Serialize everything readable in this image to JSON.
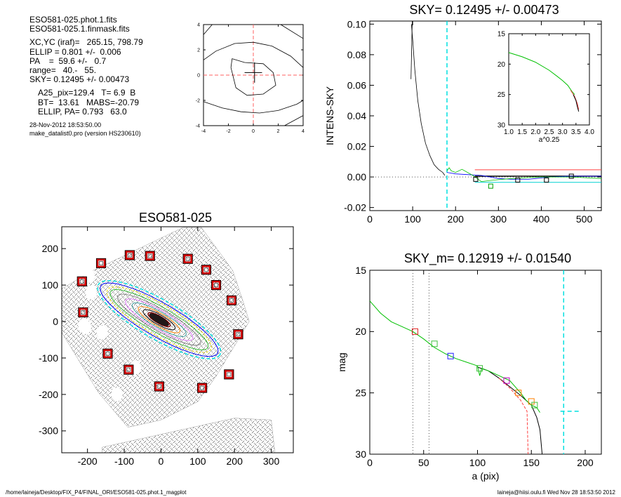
{
  "header": {
    "lines": [
      "ESO581-025.phot.1.fits",
      "ESO581-025.1.finmask.fits",
      "XC,YC (iraf)=   265.15, 798.79",
      "ELLIP = 0.801 +/-  0.006",
      "PA    =  59.6 +/-   0.7",
      "range=   40.-   55.",
      "SKY= 0.12495 +/- 0.00473",
      "A25_pix=129.4   T= 6.9  B",
      "BT=  13.61   MABS=-20.79",
      "ELLIP, PA= 0.793   63.0",
      "28-Nov-2012 18:53:50.00",
      "make_datalist0.pro (version HS230610)"
    ]
  },
  "footer": {
    "left": "/home/laineja/Desktop/FIX_P4/FINAL_ORI/ESO581-025.phot.1_magplot",
    "right": "laineja@hiisi.oulu.fi  Wed Nov 28 18:53:50 2012"
  },
  "colors": {
    "sky_cyan": "#00e0e0",
    "marker_red": "#d00000",
    "green": "#00c000",
    "blue": "#0000ff",
    "orange": "#ff8000",
    "magenta": "#c000c0",
    "dashed_red": "#ff6060"
  },
  "chart_data": [
    {
      "id": "contour_panel",
      "type": "contour",
      "title": "",
      "xlim": [
        -4,
        4
      ],
      "ylim": [
        -4,
        4
      ],
      "xticks": [
        "-4",
        "-2",
        "0",
        "2",
        "4"
      ],
      "yticks": [
        "4",
        "2",
        "0",
        "-2",
        "-4"
      ],
      "inner_contour": [
        [
          -1.8,
          0.6
        ],
        [
          -1.7,
          1.3
        ],
        [
          -0.7,
          1.0
        ],
        [
          0.8,
          0.9
        ],
        [
          1.6,
          0.2
        ],
        [
          1.8,
          -0.8
        ],
        [
          0.8,
          -1.5
        ],
        [
          -0.5,
          -1.6
        ],
        [
          -1.4,
          -1.0
        ],
        [
          -1.8,
          0.6
        ]
      ],
      "outer_contour_upper": [
        [
          -4,
          1.2
        ],
        [
          -3,
          1.9
        ],
        [
          -1.5,
          2.5
        ],
        [
          0,
          2.6
        ],
        [
          1.5,
          2.3
        ],
        [
          3,
          1.5
        ],
        [
          4,
          0.6
        ]
      ],
      "outer_contour_lower": [
        [
          -4,
          -2.1
        ],
        [
          -2.5,
          -2.6
        ],
        [
          -1,
          -2.9
        ],
        [
          0.5,
          -3.0
        ],
        [
          2,
          -2.8
        ],
        [
          3.5,
          -2.3
        ],
        [
          4,
          -2.0
        ]
      ],
      "corner_contours": [
        [
          [
            -4,
            3.2
          ],
          [
            -3.3,
            4
          ]
        ],
        [
          [
            2.2,
            4
          ],
          [
            4,
            2.9
          ]
        ],
        [
          [
            2.5,
            -4
          ],
          [
            4,
            -3.2
          ]
        ]
      ]
    },
    {
      "id": "galaxy_image",
      "type": "image",
      "title": "ESO581-025",
      "xlim": [
        -270,
        360
      ],
      "ylim": [
        -360,
        260
      ],
      "xticks": [
        "-200",
        "-100",
        "0",
        "100",
        "200",
        "300"
      ],
      "yticks": [
        "200",
        "100",
        "0",
        "-100",
        "-200",
        "-300"
      ],
      "sky_boxes": [
        [
          -30,
          180
        ],
        [
          -85,
          182
        ],
        [
          -163,
          160
        ],
        [
          -215,
          110
        ],
        [
          -212,
          25
        ],
        [
          -145,
          -88
        ],
        [
          -88,
          -132
        ],
        [
          -5,
          -178
        ],
        [
          112,
          -182
        ],
        [
          185,
          -145
        ],
        [
          210,
          -35
        ],
        [
          192,
          58
        ],
        [
          150,
          100
        ],
        [
          123,
          142
        ],
        [
          73,
          172
        ]
      ]
    },
    {
      "id": "sky_panel",
      "type": "line",
      "title": "SKY= 0.12495 +/- 0.00473",
      "xlabel": "",
      "ylabel": "INTENS-SKY",
      "xlim": [
        0,
        540
      ],
      "ylim": [
        -0.022,
        0.102
      ],
      "xticks": [
        "0",
        "100",
        "200",
        "300",
        "400",
        "500"
      ],
      "yticks": [
        "0.10",
        "0.08",
        "0.06",
        "0.04",
        "0.02",
        "0.00",
        "-0.02"
      ],
      "profile": [
        [
          97,
          0.1
        ],
        [
          100,
          0.09
        ],
        [
          105,
          0.07
        ],
        [
          112,
          0.05
        ],
        [
          120,
          0.035
        ],
        [
          130,
          0.022
        ],
        [
          140,
          0.014
        ],
        [
          150,
          0.008
        ],
        [
          160,
          0.005
        ],
        [
          170,
          0.003
        ],
        [
          175,
          0.001
        ]
      ],
      "spike": [
        [
          96,
          0.064
        ],
        [
          99,
          0.102
        ]
      ],
      "sky_line_x": 180,
      "red_line_y": 0.0047,
      "cyan_line_y": -0.0035,
      "sky_boxes": [
        [
          247,
          -0.0015
        ],
        [
          282,
          -0.006
        ],
        [
          345,
          -0.002
        ],
        [
          412,
          -0.002
        ],
        [
          470,
          0.0005
        ]
      ],
      "blue_profile": [
        [
          180,
          0.003
        ],
        [
          200,
          0.002
        ],
        [
          230,
          0.0015
        ],
        [
          260,
          0.001
        ],
        [
          300,
          -0.001
        ],
        [
          330,
          -0.0015
        ],
        [
          370,
          -0.0015
        ],
        [
          420,
          0.0
        ],
        [
          460,
          0.0005
        ],
        [
          540,
          0.0005
        ]
      ],
      "green_profile": [
        [
          180,
          0.004
        ],
        [
          185,
          0.006
        ],
        [
          190,
          0.004
        ],
        [
          200,
          0.003
        ],
        [
          215,
          0.005
        ],
        [
          240,
          0.001
        ],
        [
          260,
          -0.003
        ],
        [
          290,
          -0.002
        ],
        [
          330,
          -0.001
        ],
        [
          400,
          0.0
        ],
        [
          470,
          0.0
        ],
        [
          540,
          -0.001
        ]
      ],
      "inset": {
        "xlim": [
          1.0,
          4.0
        ],
        "ylim": [
          15,
          30
        ],
        "xlabel": "a^0.25",
        "xticks": [
          "1.0",
          "1.5",
          "2.0",
          "2.5",
          "3.0",
          "3.5",
          "4.0"
        ],
        "yticks": [
          "15",
          "20",
          "25",
          "30"
        ],
        "green": [
          [
            1.0,
            18.1
          ],
          [
            1.5,
            18.8
          ],
          [
            2.0,
            19.7
          ],
          [
            2.5,
            21.0
          ],
          [
            2.8,
            22.0
          ],
          [
            3.0,
            22.7
          ],
          [
            3.2,
            23.5
          ],
          [
            3.35,
            24.5
          ],
          [
            3.45,
            25.0
          ]
        ],
        "red": [
          [
            3.3,
            24.3
          ],
          [
            3.45,
            25.3
          ],
          [
            3.55,
            26.5
          ],
          [
            3.6,
            27.5
          ]
        ],
        "black": [
          [
            3.4,
            25.0
          ],
          [
            3.5,
            26.0
          ],
          [
            3.55,
            27.0
          ],
          [
            3.6,
            27.8
          ]
        ]
      }
    },
    {
      "id": "mag_panel",
      "type": "line",
      "title": "SKY_m=  0.12919 +/- 0.01540",
      "xlabel": "a (pix)",
      "ylabel": "mag",
      "xlim": [
        0,
        215
      ],
      "ylim": [
        15,
        30
      ],
      "xticks": [
        "0",
        "50",
        "100",
        "150",
        "200"
      ],
      "yticks": [
        "15",
        "20",
        "25",
        "30"
      ],
      "range_lines": [
        40,
        55
      ],
      "sky_line_x": 180,
      "green_profile": [
        [
          0,
          17.5
        ],
        [
          5,
          18.0
        ],
        [
          10,
          18.5
        ],
        [
          20,
          19.2
        ],
        [
          30,
          19.6
        ],
        [
          40,
          20.0
        ],
        [
          50,
          20.6
        ],
        [
          60,
          21.3
        ],
        [
          70,
          21.8
        ],
        [
          80,
          22.2
        ],
        [
          90,
          22.5
        ],
        [
          100,
          22.8
        ],
        [
          102,
          23.6
        ],
        [
          104,
          23.0
        ],
        [
          110,
          23.2
        ],
        [
          120,
          23.6
        ],
        [
          130,
          24.0
        ],
        [
          135,
          24.5
        ],
        [
          140,
          25.0
        ],
        [
          145,
          25.6
        ],
        [
          150,
          26.0
        ],
        [
          155,
          26.2
        ],
        [
          158,
          26.6
        ]
      ],
      "black_profile": [
        [
          100,
          22.9
        ],
        [
          110,
          23.2
        ],
        [
          120,
          23.8
        ],
        [
          130,
          24.5
        ],
        [
          140,
          25.2
        ],
        [
          150,
          26.0
        ],
        [
          155,
          27.0
        ],
        [
          158,
          28.0
        ],
        [
          160,
          30.0
        ]
      ],
      "red_profile": [
        [
          120,
          23.8
        ],
        [
          130,
          24.6
        ],
        [
          140,
          25.6
        ],
        [
          146,
          26.5
        ],
        [
          147,
          30.0
        ]
      ],
      "cyan_step": [
        [
          177,
          26.5
        ],
        [
          195,
          26.5
        ]
      ],
      "boxes": [
        {
          "x": 42,
          "y": 20.0,
          "color": "red"
        },
        {
          "x": 60,
          "y": 21.0,
          "color": "green"
        },
        {
          "x": 75,
          "y": 22.0,
          "color": "blue"
        },
        {
          "x": 102,
          "y": 23.0,
          "color": "green"
        },
        {
          "x": 127,
          "y": 24.0,
          "color": "magenta"
        },
        {
          "x": 138,
          "y": 25.0,
          "color": "orange"
        },
        {
          "x": 150,
          "y": 25.7,
          "color": "orange"
        },
        {
          "x": 153,
          "y": 26.0,
          "color": "green"
        }
      ]
    }
  ]
}
